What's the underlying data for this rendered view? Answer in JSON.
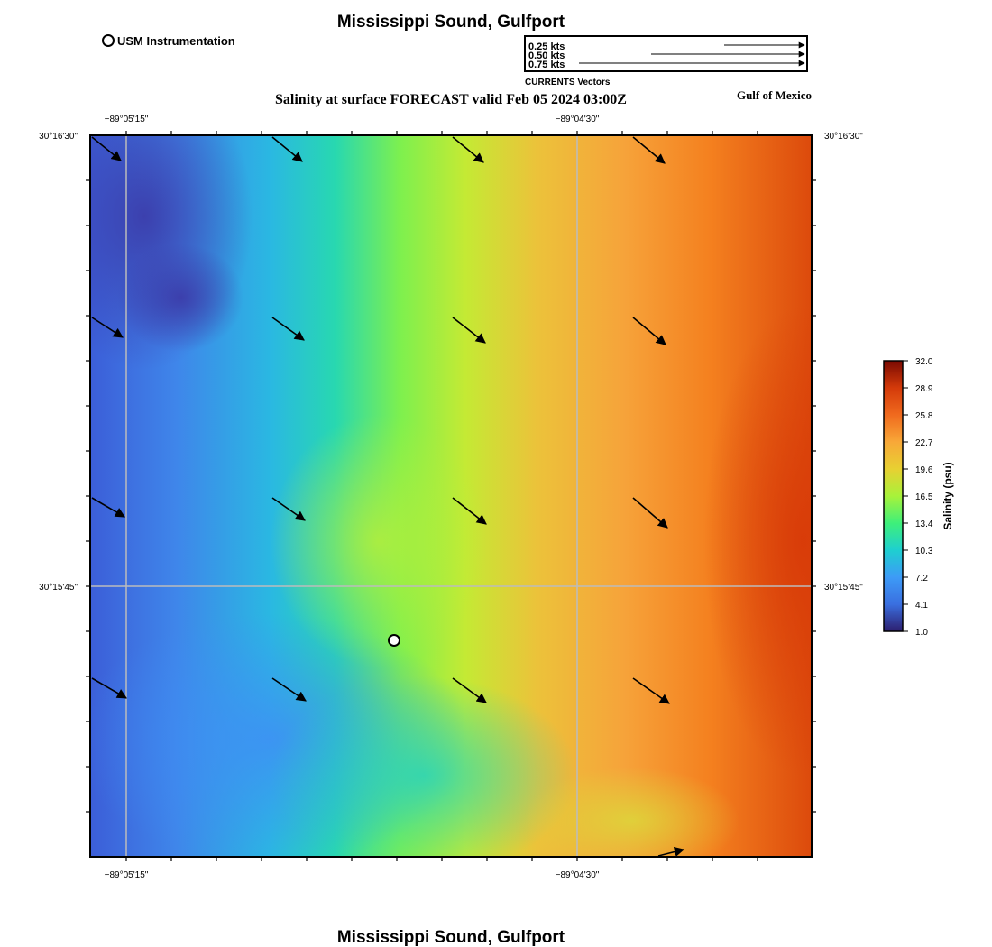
{
  "header": {
    "title": "Mississippi Sound, Gulfport",
    "subtitle": "Salinity at surface FORECAST valid Feb 05 2024 03:00Z",
    "region_label": "Gulf of Mexico",
    "footer_title": "Mississippi Sound, Gulfport"
  },
  "legend": {
    "marker_label": "USM Instrumentation",
    "vectors": [
      {
        "label": "0.25 kts",
        "speed": 0.25
      },
      {
        "label": "0.50 kts",
        "speed": 0.5
      },
      {
        "label": "0.75 kts",
        "speed": 0.75
      }
    ],
    "vectors_caption": "CURRENTS Vectors"
  },
  "axes": {
    "lon_ticks": [
      "−89°05'15\"",
      "−89°04'30\""
    ],
    "lat_ticks": [
      "30°16'30\"",
      "30°15'45\""
    ]
  },
  "colorbar": {
    "label": "Salinity (psu)",
    "ticks": [
      "32.0",
      "28.9",
      "25.8",
      "22.7",
      "19.6",
      "16.5",
      "13.4",
      "10.3",
      "7.2",
      "4.1",
      "1.0"
    ],
    "min": 1.0,
    "max": 32.0,
    "colors": [
      "#2d1e6e",
      "#3a6fe0",
      "#3d9bf7",
      "#1ecfd0",
      "#3ef07a",
      "#a8f23a",
      "#e8d032",
      "#f8a838",
      "#f06a1e",
      "#d43a0a",
      "#7a0a02"
    ]
  },
  "station": {
    "name": "USM Instrumentation"
  },
  "current_vectors": {
    "direction": "southeast",
    "count": 17
  }
}
